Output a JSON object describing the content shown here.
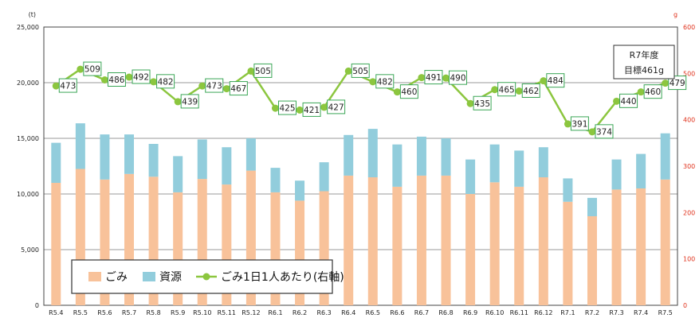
{
  "chart_data": {
    "type": "bar+line",
    "title": "",
    "left_axis_unit": "(t)",
    "right_axis_unit": "g",
    "ylim_left": [
      0,
      25000
    ],
    "ylim_right": [
      0,
      600
    ],
    "left_ticks": [
      "0",
      "5,000",
      "10,000",
      "15,000",
      "20,000",
      "25,000"
    ],
    "right_ticks": [
      "0",
      "100",
      "200",
      "300",
      "400",
      "500",
      "600"
    ],
    "categories": [
      "R5.4",
      "R5.5",
      "R5.6",
      "R5.7",
      "R5.8",
      "R5.9",
      "R5.10",
      "R5.11",
      "R5.12",
      "R6.1",
      "R6.2",
      "R6.3",
      "R6.4",
      "R6.5",
      "R6.6",
      "R6.7",
      "R6.8",
      "R6.9",
      "R6.10",
      "R6.11",
      "R6.12",
      "R7.1",
      "R7.2",
      "R7.3",
      "R7.4",
      "R7.5"
    ],
    "series": [
      {
        "name": "ごみ",
        "type": "stacked-bar",
        "axis": "left",
        "color": "#f8c29a",
        "values": [
          11000,
          12250,
          11300,
          11800,
          11550,
          10150,
          11350,
          10850,
          12100,
          10150,
          9400,
          10250,
          11650,
          11500,
          10650,
          11650,
          11650,
          10000,
          11050,
          10650,
          11500,
          9300,
          8000,
          10400,
          10500,
          11300
        ]
      },
      {
        "name": "資源",
        "type": "stacked-bar",
        "axis": "left",
        "color": "#92cddc",
        "values": [
          3600,
          4100,
          4050,
          3550,
          2950,
          3250,
          3550,
          3350,
          2900,
          2200,
          1800,
          2600,
          3650,
          4350,
          3800,
          3500,
          3350,
          3100,
          3400,
          3250,
          2700,
          2100,
          1650,
          2700,
          3100,
          4150
        ]
      },
      {
        "name": "ごみ1日1人あたり(右軸)",
        "type": "line",
        "axis": "right",
        "color": "#8cc63f",
        "values": [
          473,
          509,
          486,
          492,
          482,
          439,
          473,
          467,
          505,
          425,
          421,
          427,
          505,
          482,
          460,
          491,
          490,
          435,
          465,
          462,
          484,
          391,
          374,
          440,
          460,
          479
        ]
      }
    ],
    "target_box": {
      "line1": "R7年度",
      "line2": "目標461g"
    }
  }
}
